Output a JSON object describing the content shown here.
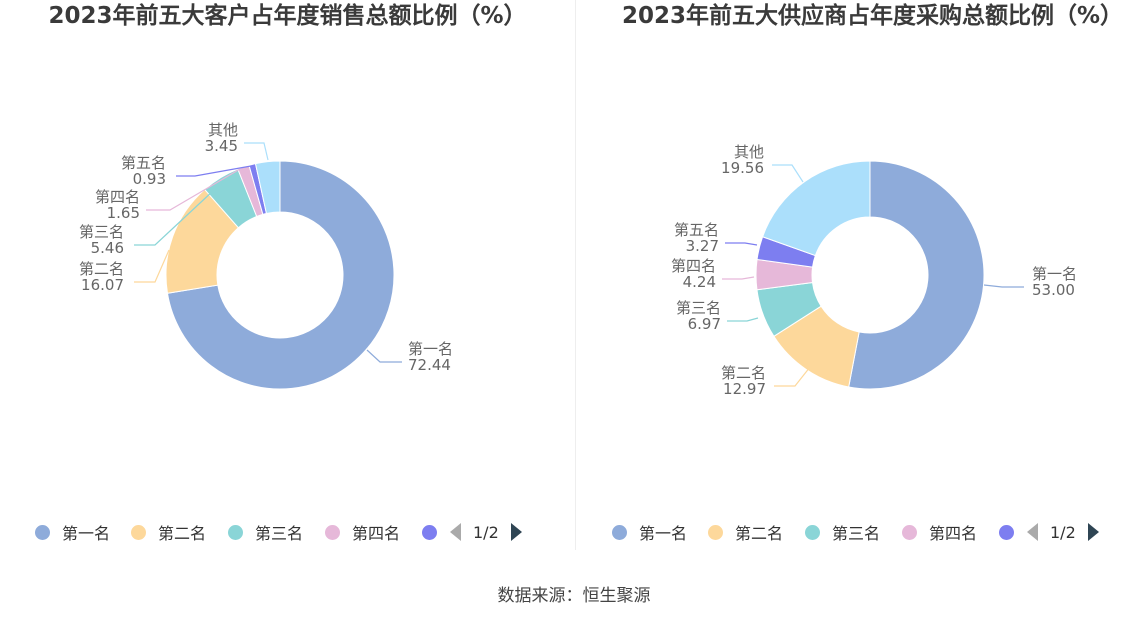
{
  "chart_data": [
    {
      "type": "pie",
      "title": "2023年前五大客户占年度销售总额比例（%）",
      "categories": [
        "第一名",
        "第二名",
        "第三名",
        "第四名",
        "第五名",
        "其他"
      ],
      "values": [
        72.44,
        16.07,
        5.46,
        1.65,
        0.93,
        3.45
      ],
      "colors": [
        "#8eabda",
        "#fdd89b",
        "#8ad5d7",
        "#e6b8d9",
        "#7d7ef0",
        "#abdffb"
      ],
      "value_labels": [
        "72.44",
        "16.07",
        "5.46",
        "1.65",
        "0.93",
        "3.45"
      ],
      "legend": {
        "placement": "bottom",
        "page": "1/2"
      }
    },
    {
      "type": "pie",
      "title": "2023年前五大供应商占年度采购总额比例（%）",
      "categories": [
        "第一名",
        "第二名",
        "第三名",
        "第四名",
        "第五名",
        "其他"
      ],
      "values": [
        53.0,
        12.97,
        6.97,
        4.24,
        3.27,
        19.56
      ],
      "colors": [
        "#8eabda",
        "#fdd89b",
        "#8ad5d7",
        "#e6b8d9",
        "#7d7ef0",
        "#abdffb"
      ],
      "value_labels": [
        "53.00",
        "12.97",
        "6.97",
        "4.24",
        "3.27",
        "19.56"
      ],
      "legend": {
        "placement": "bottom",
        "page": "1/2"
      }
    }
  ],
  "source": "数据来源：恒生聚源"
}
